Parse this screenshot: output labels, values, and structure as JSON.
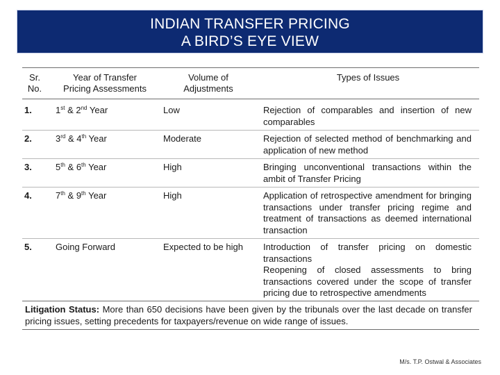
{
  "title": {
    "line1": "INDIAN TRANSFER PRICING",
    "line2": "A BIRD’S EYE VIEW"
  },
  "table": {
    "headers": {
      "sr_line1": "Sr.",
      "sr_line2": "No.",
      "year_line1": "Year of Transfer",
      "year_line2": "Pricing Assessments",
      "volume_line1": "Volume of",
      "volume_line2": "Adjustments",
      "issues": "Types of Issues"
    },
    "rows": [
      {
        "sr": "1.",
        "year": {
          "n1": "1",
          "s1": "st",
          "mid": " & ",
          "n2": "2",
          "s2": "nd",
          "tail": " Year"
        },
        "volume": "Low",
        "issues": [
          "Rejection of comparables and insertion of new comparables"
        ]
      },
      {
        "sr": "2.",
        "year": {
          "n1": "3",
          "s1": "rd",
          "mid": " & ",
          "n2": "4",
          "s2": "th",
          "tail": " Year"
        },
        "volume": "Moderate",
        "issues": [
          "Rejection of selected method of benchmarking and application of new method"
        ]
      },
      {
        "sr": "3.",
        "year": {
          "n1": "5",
          "s1": "th",
          "mid": " & ",
          "n2": "6",
          "s2": "th",
          "tail": " Year"
        },
        "volume": "High",
        "issues": [
          "Bringing unconventional transactions within the ambit of Transfer Pricing"
        ]
      },
      {
        "sr": "4.",
        "year": {
          "n1": "7",
          "s1": "th",
          "mid": " & ",
          "n2": "9",
          "s2": "th",
          "tail": " Year"
        },
        "volume": "High",
        "issues": [
          "Application of retrospective amendment for bringing transactions under transfer pricing regime and treatment of transactions as deemed international transaction"
        ]
      },
      {
        "sr": "5.",
        "year_text": "Going Forward",
        "volume": "Expected to be high",
        "issues": [
          "Introduction of transfer pricing on domestic transactions",
          "Reopening of closed assessments to bring transactions covered under the scope of transfer pricing due to retrospective amendments"
        ]
      }
    ]
  },
  "litigation": {
    "label": "Litigation Status:",
    "text": " More than 650 decisions have been given by the tribunals over the last decade on transfer pricing issues, setting precedents for taxpayers/revenue on wide range of issues."
  },
  "footer": "M/s. T.P. Ostwal & Associates"
}
